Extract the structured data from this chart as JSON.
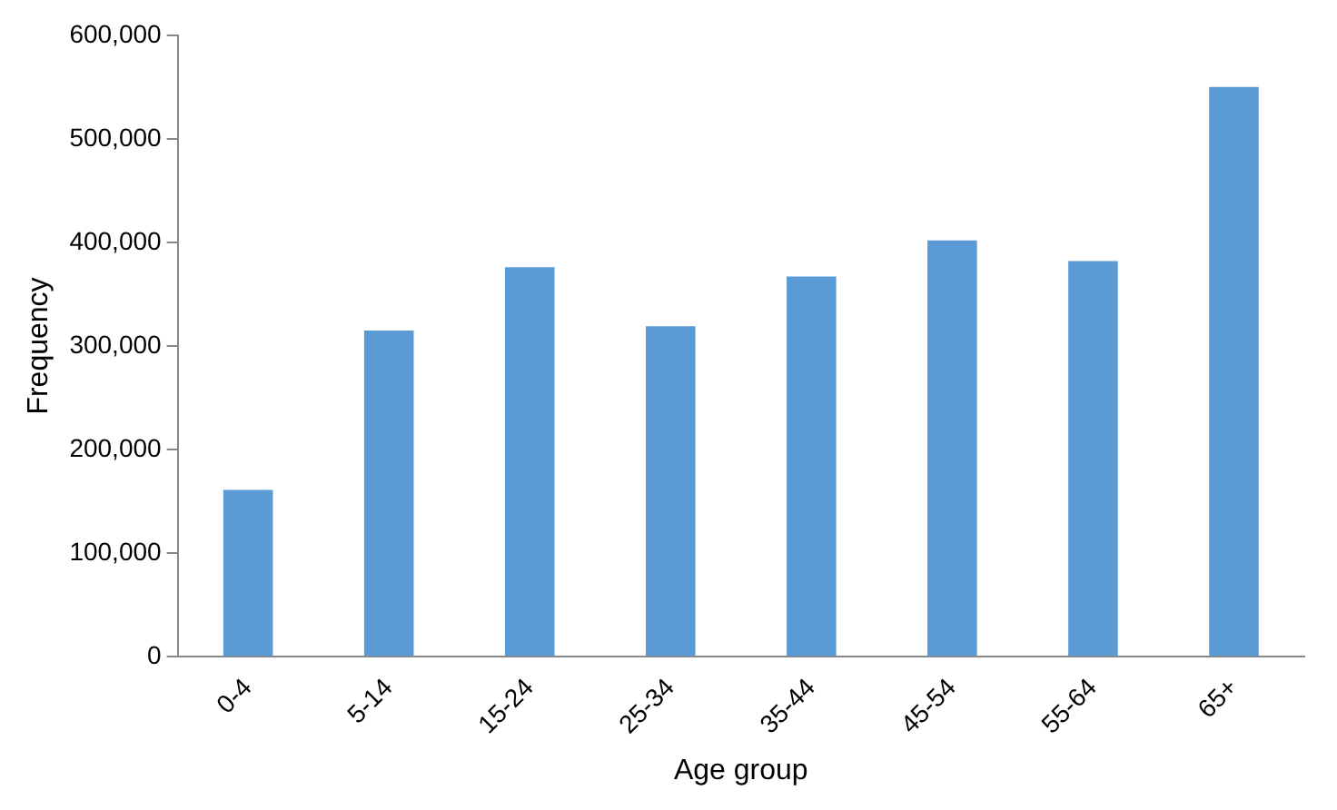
{
  "chart_data": {
    "type": "bar",
    "xlabel": "Age group",
    "ylabel": "Frequency",
    "categories": [
      "0-4",
      "5-14",
      "15-24",
      "25-34",
      "35-44",
      "45-54",
      "55-64",
      "65+"
    ],
    "values": [
      161000,
      315000,
      376000,
      319000,
      367000,
      402000,
      382000,
      550000
    ],
    "color": "#5b9bd5",
    "ylim": [
      0,
      600000
    ],
    "yticks": [
      0,
      {
        "value": 100000,
        "label": "100,000"
      },
      {
        "value": 200000,
        "label": "200,000"
      },
      {
        "value": 300000,
        "label": "300,000"
      },
      {
        "value": 400000,
        "label": "400,000"
      },
      {
        "value": 500000,
        "label": "500,000"
      },
      {
        "value": 600000,
        "label": "600,000"
      }
    ],
    "grid": false,
    "legend": false
  }
}
